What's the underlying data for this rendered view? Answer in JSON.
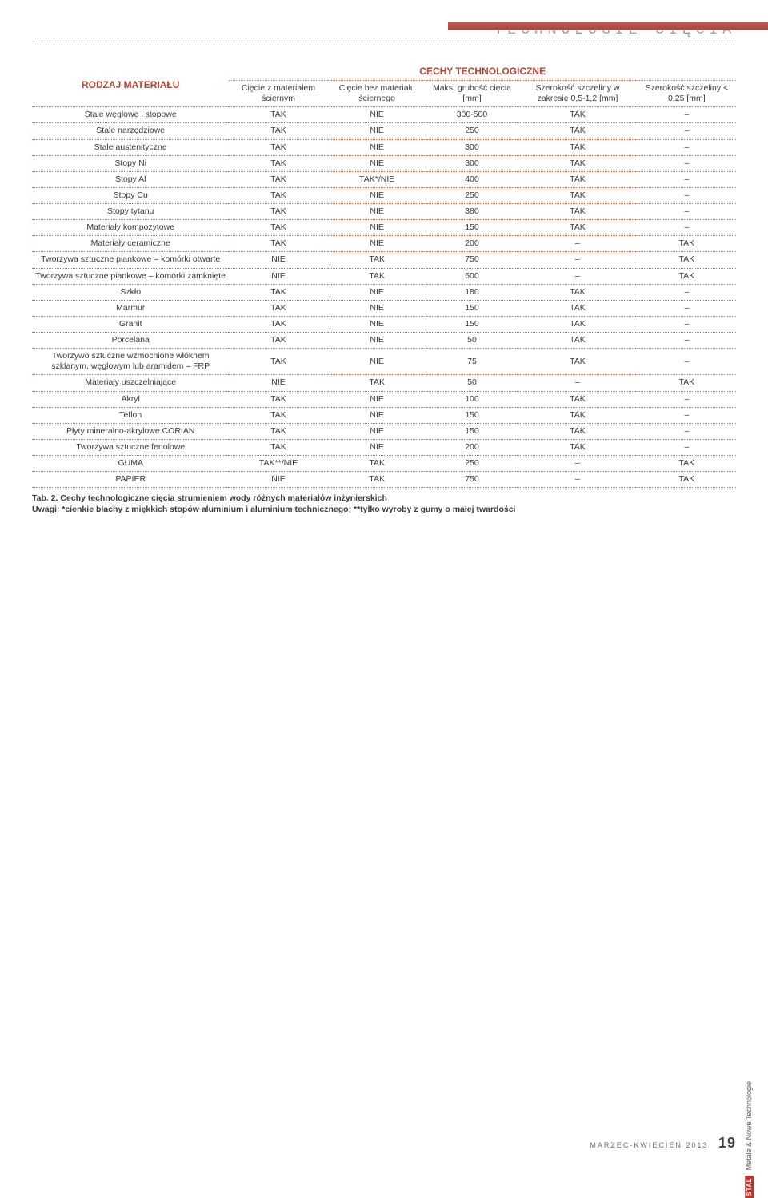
{
  "section_title": "Technologie cięcia",
  "table": {
    "header_left": "RODZAJ MATERIAŁU",
    "header_right": "CECHY TECHNOLOGICZNE",
    "columns": [
      "Cięcie z materiałem ściernym",
      "Cięcie bez materiału ściernego",
      "Maks. grubość cięcia [mm]",
      "Szerokość szczeliny w zakresie 0,5-1,2 [mm]",
      "Szerokość szczeliny < 0,25 [mm]"
    ],
    "rows": [
      [
        "Stale węglowe i stopowe",
        "TAK",
        "NIE",
        "300-500",
        "TAK",
        "–"
      ],
      [
        "Stale narzędziowe",
        "TAK",
        "NIE",
        "250",
        "TAK",
        "–"
      ],
      [
        "Stale austenityczne",
        "TAK",
        "NIE",
        "300",
        "TAK",
        "–"
      ],
      [
        "Stopy Ni",
        "TAK",
        "NIE",
        "300",
        "TAK",
        "–"
      ],
      [
        "Stopy Al",
        "TAK",
        "TAK*/NIE",
        "400",
        "TAK",
        "–"
      ],
      [
        "Stopy Cu",
        "TAK",
        "NIE",
        "250",
        "TAK",
        "–"
      ],
      [
        "Stopy tytanu",
        "TAK",
        "NIE",
        "380",
        "TAK",
        "–"
      ],
      [
        "Materiały kompozytowe",
        "TAK",
        "NIE",
        "150",
        "TAK",
        "–"
      ],
      [
        "Materiały ceramiczne",
        "TAK",
        "NIE",
        "200",
        "–",
        "TAK"
      ],
      [
        "Tworzywa sztuczne piankowe – komórki otwarte",
        "NIE",
        "TAK",
        "750",
        "–",
        "TAK"
      ],
      [
        "Tworzywa sztuczne piankowe – komórki zamknięte",
        "NIE",
        "TAK",
        "500",
        "–",
        "TAK"
      ],
      [
        "Szkło",
        "TAK",
        "NIE",
        "180",
        "TAK",
        "–"
      ],
      [
        "Marmur",
        "TAK",
        "NIE",
        "150",
        "TAK",
        "–"
      ],
      [
        "Granit",
        "TAK",
        "NIE",
        "150",
        "TAK",
        "–"
      ],
      [
        "Porcelana",
        "TAK",
        "NIE",
        "50",
        "TAK",
        "–"
      ],
      [
        "Tworzywo sztuczne wzmocnione włóknem szklanym, węglowym lub aramidem – FRP",
        "TAK",
        "NIE",
        "75",
        "TAK",
        "–"
      ],
      [
        "Materiały uszczelniające",
        "NIE",
        "TAK",
        "50",
        "–",
        "TAK"
      ],
      [
        "Akryl",
        "TAK",
        "NIE",
        "100",
        "TAK",
        "–"
      ],
      [
        "Teflon",
        "TAK",
        "NIE",
        "150",
        "TAK",
        "–"
      ],
      [
        "Płyty mineralno-akrylowe CORIAN",
        "TAK",
        "NIE",
        "150",
        "TAK",
        "–"
      ],
      [
        "Tworzywa sztuczne fenolowe",
        "TAK",
        "NIE",
        "200",
        "TAK",
        "–"
      ],
      [
        "GUMA",
        "TAK**/NIE",
        "TAK",
        "250",
        "–",
        "TAK"
      ],
      [
        "PAPIER",
        "NIE",
        "TAK",
        "750",
        "–",
        "TAK"
      ]
    ]
  },
  "caption_bold": "Tab. 2. Cechy technologiczne cięcia strumieniem wody różnych materiałów inżynierskich",
  "caption_rest": "Uwagi: *cienkie blachy z miękkich stopów aluminium i aluminium technicznego; **tylko wyroby z gumy o małej twardości",
  "footer_text": "MARZEC-KWIECIEŃ 2013",
  "page_number": "19",
  "side_badge": "STAL",
  "side_text": "Metale & Nowe Technologie"
}
